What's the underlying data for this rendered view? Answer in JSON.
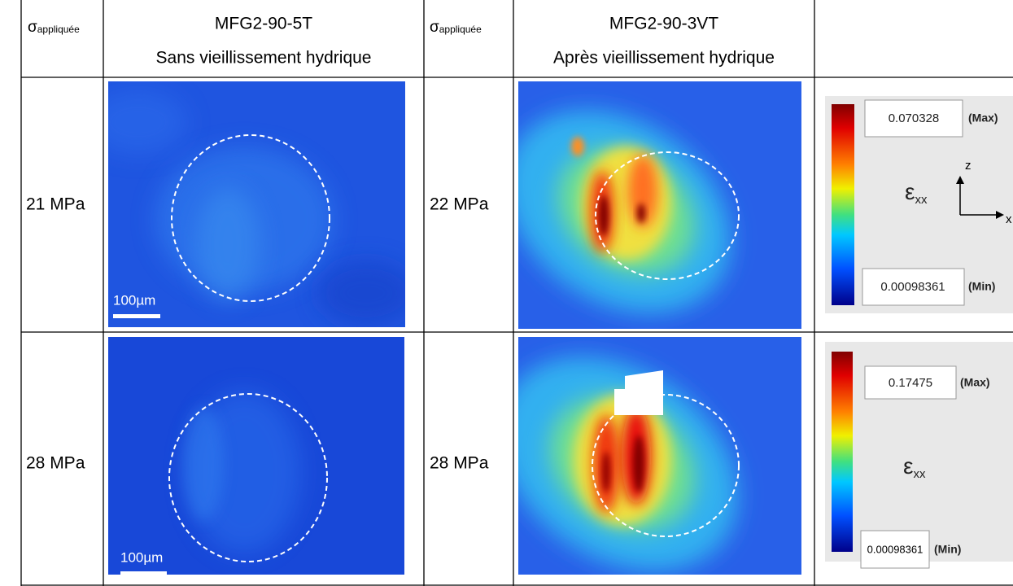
{
  "table": {
    "header": [
      {
        "symbol": "σ",
        "subscript": "appliquée"
      },
      [
        "MFG2-90-5T",
        "Sans vieillissement hydrique"
      ],
      {
        "symbol": "σ",
        "subscript": "appliquée"
      },
      [
        "MFG2-90-3VT",
        "Après vieillissement hydrique"
      ]
    ],
    "rows": [
      {
        "stress_before": "21 MPa",
        "scale_bar": "100µm",
        "stress_after": "22 MPa",
        "legend": {
          "max": "0.070328",
          "max_tag": "(Max)",
          "symbol": "ε",
          "subscript": "xx",
          "axis_z": "z",
          "axis_x": "x",
          "min": "0.00098361",
          "min_tag": "(Min)"
        }
      },
      {
        "stress_before": "28 MPa",
        "scale_bar": "100µm",
        "stress_after": "28 MPa",
        "legend": {
          "max": "0.17475",
          "max_tag": "(Max)",
          "symbol": "ε",
          "subscript": "xx",
          "min": "0.00098361",
          "min_tag": "(Min)"
        }
      }
    ]
  }
}
